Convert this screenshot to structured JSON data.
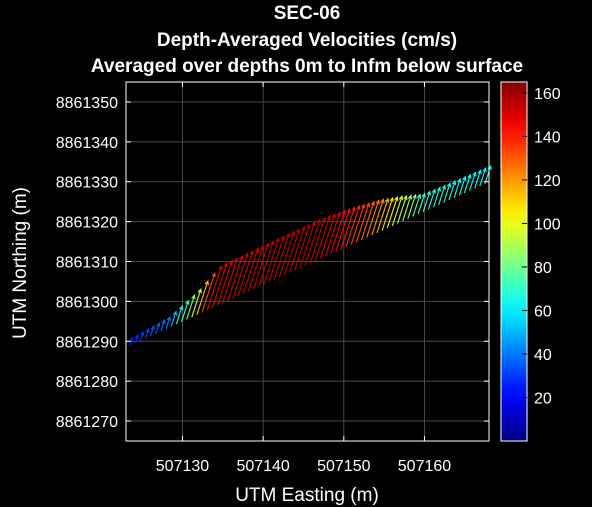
{
  "chart_data": {
    "type": "quiver",
    "title": [
      "SEC-06",
      "Depth-Averaged Velocities (cm/s)",
      "Averaged over depths 0m to Infm below surface"
    ],
    "xlabel": "UTM Easting (m)",
    "ylabel": "UTM Northing (m)",
    "xlim": [
      507123,
      507168
    ],
    "ylim": [
      8861265,
      8861355
    ],
    "xticks": [
      507130,
      507140,
      507150,
      507160
    ],
    "xtick_labels": [
      "507130",
      "507140",
      "507150",
      "507160"
    ],
    "yticks": [
      8861270,
      8861280,
      8861290,
      8861300,
      8861310,
      8861320,
      8861330,
      8861340,
      8861350
    ],
    "ytick_labels": [
      "8861270",
      "8861280",
      "8861290",
      "8861300",
      "8861310",
      "8861320",
      "8861330",
      "8861340",
      "8861350"
    ],
    "grid": true,
    "colorbar": {
      "colormap": "jet",
      "range": [
        0,
        165
      ],
      "ticks": [
        20,
        40,
        60,
        80,
        100,
        120,
        140,
        160
      ],
      "tick_labels": [
        "20",
        "40",
        "60",
        "80",
        "100",
        "120",
        "140",
        "160"
      ]
    },
    "transect": {
      "start_easting": 507123.5,
      "start_northing": 8861289.0,
      "end_easting": 507167.5,
      "end_northing": 8861329.5,
      "num_vectors": 70
    },
    "speed_profile": {
      "easting": [
        507123.5,
        507128,
        507131,
        507133,
        507140,
        507146,
        507150,
        507153,
        507156,
        507159,
        507162,
        507167.5
      ],
      "speed_cm_s": [
        25,
        40,
        90,
        150,
        155,
        155,
        140,
        125,
        100,
        70,
        65,
        60
      ]
    },
    "arrow_direction": "pointing north-northeast along the transect, tips rising toward the northern edge",
    "colors": {
      "background": "#000000",
      "axes_background": "#000000",
      "grid": "#4a4a4a",
      "axis": "#ffffff",
      "text": "#ffffff"
    }
  }
}
